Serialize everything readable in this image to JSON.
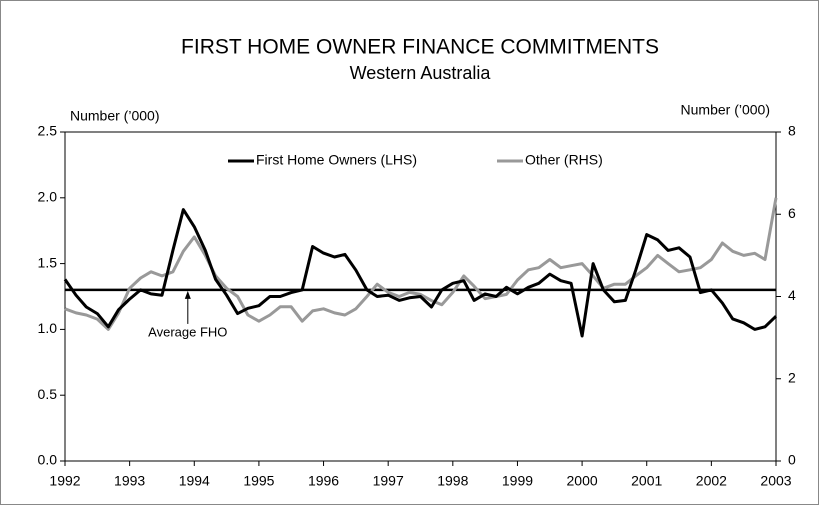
{
  "chart_data": {
    "type": "line",
    "title": "FIRST HOME OWNER FINANCE COMMITMENTS",
    "subtitle": "Western Australia",
    "ylabel": "Number (’000)",
    "y2label": "Number (’000)",
    "x": [
      1992,
      1992.17,
      1992.33,
      1992.5,
      1992.67,
      1992.83,
      1993,
      1993.17,
      1993.33,
      1993.5,
      1993.67,
      1993.83,
      1994,
      1994.17,
      1994.33,
      1994.5,
      1994.67,
      1994.83,
      1995,
      1995.17,
      1995.33,
      1995.5,
      1995.67,
      1995.83,
      1996,
      1996.17,
      1996.33,
      1996.5,
      1996.67,
      1996.83,
      1997,
      1997.17,
      1997.33,
      1997.5,
      1997.67,
      1997.83,
      1998,
      1998.17,
      1998.33,
      1998.5,
      1998.67,
      1998.83,
      1999,
      1999.17,
      1999.33,
      1999.5,
      1999.67,
      1999.83,
      2000,
      2000.17,
      2000.33,
      2000.5,
      2000.67,
      2000.83,
      2001,
      2001.17,
      2001.33,
      2001.5,
      2001.67,
      2001.83,
      2002,
      2002.17,
      2002.33,
      2002.5,
      2002.67,
      2002.83,
      2003
    ],
    "series": [
      {
        "name": "First Home Owners (LHS)",
        "color": "#000000",
        "axis": "y",
        "values": [
          1.38,
          1.26,
          1.17,
          1.12,
          1.02,
          1.15,
          1.23,
          1.3,
          1.27,
          1.26,
          1.6,
          1.91,
          1.78,
          1.6,
          1.38,
          1.26,
          1.12,
          1.16,
          1.18,
          1.25,
          1.25,
          1.28,
          1.3,
          1.63,
          1.58,
          1.55,
          1.57,
          1.45,
          1.3,
          1.25,
          1.26,
          1.22,
          1.24,
          1.25,
          1.17,
          1.3,
          1.35,
          1.37,
          1.22,
          1.27,
          1.25,
          1.32,
          1.27,
          1.32,
          1.35,
          1.42,
          1.37,
          1.35,
          0.95,
          1.5,
          1.3,
          1.21,
          1.22,
          1.45,
          1.72,
          1.68,
          1.6,
          1.62,
          1.55,
          1.28,
          1.3,
          1.2,
          1.08,
          1.05,
          1.0,
          1.02,
          1.1
        ]
      },
      {
        "name": "Other (RHS)",
        "color": "#999999",
        "axis": "y2",
        "values": [
          3.7,
          3.6,
          3.55,
          3.45,
          3.2,
          3.6,
          4.2,
          4.45,
          4.6,
          4.5,
          4.6,
          5.1,
          5.45,
          5.0,
          4.5,
          4.2,
          4.0,
          3.55,
          3.4,
          3.55,
          3.75,
          3.75,
          3.4,
          3.65,
          3.7,
          3.6,
          3.55,
          3.7,
          4.0,
          4.3,
          4.1,
          4.0,
          4.1,
          4.05,
          3.9,
          3.8,
          4.1,
          4.5,
          4.25,
          3.95,
          4.0,
          4.05,
          4.4,
          4.65,
          4.7,
          4.9,
          4.7,
          4.75,
          4.8,
          4.5,
          4.2,
          4.3,
          4.3,
          4.5,
          4.7,
          5.0,
          4.8,
          4.6,
          4.65,
          4.7,
          4.9,
          5.3,
          5.1,
          5.0,
          5.05,
          4.9,
          6.4
        ]
      }
    ],
    "average": 1.3,
    "annotation": "Average FHO",
    "annotation_x": 1993.9,
    "xlim": [
      1992,
      2003
    ],
    "xticks": [
      1992,
      1993,
      1994,
      1995,
      1996,
      1997,
      1998,
      1999,
      2000,
      2001,
      2002,
      2003
    ],
    "ylim": [
      0,
      2.5
    ],
    "yticks": [
      {
        "value": 0,
        "label": "0.0"
      },
      0.5,
      {
        "value": 1,
        "label": "1.0"
      },
      1.5,
      {
        "value": 2,
        "label": "2.0"
      },
      2.5
    ],
    "y2lim": [
      0,
      8
    ],
    "y2ticks": [
      0,
      2,
      4,
      6,
      8
    ],
    "legend": "top"
  }
}
